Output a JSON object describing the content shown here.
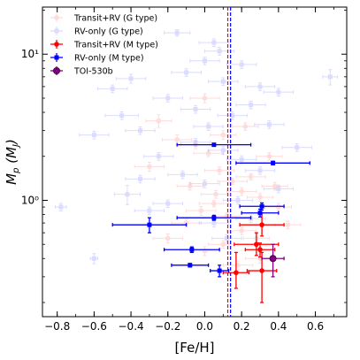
{
  "chart_data": {
    "type": "scatter",
    "xlabel": "[Fe/H]",
    "ylabel": "M_p (M_J)",
    "xlim": [
      -0.88,
      0.77
    ],
    "ylim": [
      0.16,
      21
    ],
    "yscale": "log",
    "grid": false,
    "legend_position": "top-left",
    "x_ticks": [
      -0.8,
      -0.6,
      -0.4,
      -0.2,
      0.0,
      0.2,
      0.4,
      0.6
    ],
    "x_tick_labels": [
      "−0.8",
      "−0.6",
      "−0.4",
      "−0.2",
      "0.0",
      "0.2",
      "0.4",
      "0.6"
    ],
    "y_major_ticks": [
      1,
      10
    ],
    "y_tick_labels": [
      "10⁰",
      "10¹"
    ],
    "reference_lines": [
      {
        "x": 0.125,
        "color": "#ff0000",
        "style": "dashed"
      },
      {
        "x": 0.14,
        "color": "#0000ff",
        "style": "dashed"
      }
    ],
    "series": [
      {
        "name": "Transit+RV (G type)",
        "color": "#ff9999",
        "marker": "circle",
        "faded": true,
        "points": [
          {
            "x": -0.25,
            "y": 3.5,
            "xerr": 0.07,
            "yerr_rel": 0.1
          },
          {
            "x": -0.15,
            "y": 2.6,
            "xerr": 0.08,
            "yerr_rel": 0.08
          },
          {
            "x": -0.05,
            "y": 2.4,
            "xerr": 0.08,
            "yerr_rel": 0.06
          },
          {
            "x": 0.02,
            "y": 2.1,
            "xerr": 0.08,
            "yerr_rel": 0.05
          },
          {
            "x": 0.08,
            "y": 1.6,
            "xerr": 0.08,
            "yerr_rel": 0.06
          },
          {
            "x": 0.1,
            "y": 2.8,
            "xerr": 0.07,
            "yerr_rel": 0.07
          },
          {
            "x": 0.15,
            "y": 1.35,
            "xerr": 0.08,
            "yerr_rel": 0.05
          },
          {
            "x": 0.2,
            "y": 1.15,
            "xerr": 0.08,
            "yerr_rel": 0.06
          },
          {
            "x": 0.25,
            "y": 1.45,
            "xerr": 0.08,
            "yerr_rel": 0.05
          },
          {
            "x": 0.3,
            "y": 1.05,
            "xerr": 0.07,
            "yerr_rel": 0.06
          },
          {
            "x": 0.05,
            "y": 0.95,
            "xerr": 0.08,
            "yerr_rel": 0.05
          },
          {
            "x": -0.02,
            "y": 0.85,
            "xerr": 0.08,
            "yerr_rel": 0.07
          },
          {
            "x": 0.12,
            "y": 0.78,
            "xerr": 0.07,
            "yerr_rel": 0.05
          },
          {
            "x": 0.2,
            "y": 0.62,
            "xerr": 0.08,
            "yerr_rel": 0.06
          },
          {
            "x": -0.1,
            "y": 0.7,
            "xerr": 0.08,
            "yerr_rel": 0.06
          },
          {
            "x": 0.28,
            "y": 0.55,
            "xerr": 0.07,
            "yerr_rel": 0.07
          },
          {
            "x": 0.1,
            "y": 0.5,
            "xerr": 0.08,
            "yerr_rel": 0.06
          },
          {
            "x": 0.0,
            "y": 0.45,
            "xerr": 0.08,
            "yerr_rel": 0.07
          },
          {
            "x": 0.3,
            "y": 0.4,
            "xerr": 0.08,
            "yerr_rel": 0.07
          },
          {
            "x": -0.2,
            "y": 0.55,
            "xerr": 0.08,
            "yerr_rel": 0.07
          },
          {
            "x": 0.4,
            "y": 0.9,
            "xerr": 0.07,
            "yerr_rel": 0.06
          },
          {
            "x": 0.35,
            "y": 2.0,
            "xerr": 0.07,
            "yerr_rel": 0.06
          },
          {
            "x": -0.08,
            "y": 1.25,
            "xerr": 0.07,
            "yerr_rel": 0.06
          },
          {
            "x": 0.45,
            "y": 0.68,
            "xerr": 0.07,
            "yerr_rel": 0.06
          },
          {
            "x": 0.18,
            "y": 0.36,
            "xerr": 0.08,
            "yerr_rel": 0.07
          },
          {
            "x": 0.0,
            "y": 5.0,
            "xerr": 0.08,
            "yerr_rel": 0.07
          },
          {
            "x": 0.22,
            "y": 3.2,
            "xerr": 0.07,
            "yerr_rel": 0.06
          },
          {
            "x": -0.3,
            "y": 1.7,
            "xerr": 0.08,
            "yerr_rel": 0.07
          },
          {
            "x": 0.38,
            "y": 1.25,
            "xerr": 0.07,
            "yerr_rel": 0.06
          },
          {
            "x": 0.06,
            "y": 1.1,
            "xerr": 0.08,
            "yerr_rel": 0.06
          }
        ]
      },
      {
        "name": "RV-only (G type)",
        "color": "#9999ff",
        "marker": "square",
        "faded": true,
        "points": [
          {
            "x": -0.4,
            "y": 6.8,
            "xerr": 0.08,
            "yerr_rel": 0.07
          },
          {
            "x": -0.5,
            "y": 5.8,
            "xerr": 0.08,
            "yerr_rel": 0.06
          },
          {
            "x": -0.45,
            "y": 3.8,
            "xerr": 0.09,
            "yerr_rel": 0.06
          },
          {
            "x": -0.35,
            "y": 3.0,
            "xerr": 0.08,
            "yerr_rel": 0.06
          },
          {
            "x": -0.6,
            "y": 2.8,
            "xerr": 0.08,
            "yerr_rel": 0.06
          },
          {
            "x": -0.2,
            "y": 5.0,
            "xerr": 0.08,
            "yerr_rel": 0.06
          },
          {
            "x": -0.1,
            "y": 7.5,
            "xerr": 0.08,
            "yerr_rel": 0.06
          },
          {
            "x": 0.0,
            "y": 9.0,
            "xerr": 0.08,
            "yerr_rel": 0.06
          },
          {
            "x": 0.05,
            "y": 12.0,
            "xerr": 0.08,
            "yerr_rel": 0.06
          },
          {
            "x": -0.15,
            "y": 14.0,
            "xerr": 0.07,
            "yerr_rel": 0.05
          },
          {
            "x": 0.1,
            "y": 6.5,
            "xerr": 0.08,
            "yerr_rel": 0.06
          },
          {
            "x": 0.2,
            "y": 8.5,
            "xerr": 0.08,
            "yerr_rel": 0.06
          },
          {
            "x": 0.3,
            "y": 6.0,
            "xerr": 0.08,
            "yerr_rel": 0.06
          },
          {
            "x": 0.25,
            "y": 4.5,
            "xerr": 0.08,
            "yerr_rel": 0.06
          },
          {
            "x": 0.4,
            "y": 5.5,
            "xerr": 0.08,
            "yerr_rel": 0.06
          },
          {
            "x": 0.35,
            "y": 3.3,
            "xerr": 0.08,
            "yerr_rel": 0.06
          },
          {
            "x": 0.15,
            "y": 3.8,
            "xerr": 0.08,
            "yerr_rel": 0.06
          },
          {
            "x": 0.02,
            "y": 3.2,
            "xerr": 0.08,
            "yerr_rel": 0.06
          },
          {
            "x": -0.05,
            "y": 2.5,
            "xerr": 0.08,
            "yerr_rel": 0.06
          },
          {
            "x": 0.1,
            "y": 2.2,
            "xerr": 0.08,
            "yerr_rel": 0.06
          },
          {
            "x": -0.25,
            "y": 2.0,
            "xerr": 0.08,
            "yerr_rel": 0.06
          },
          {
            "x": 0.3,
            "y": 1.6,
            "xerr": 0.08,
            "yerr_rel": 0.06
          },
          {
            "x": 0.2,
            "y": 1.9,
            "xerr": 0.08,
            "yerr_rel": 0.06
          },
          {
            "x": -0.12,
            "y": 1.5,
            "xerr": 0.08,
            "yerr_rel": 0.06
          },
          {
            "x": 0.5,
            "y": 2.3,
            "xerr": 0.08,
            "yerr_rel": 0.06
          },
          {
            "x": 0.68,
            "y": 7.0,
            "xerr": 0.04,
            "yerr_rel": 0.12
          },
          {
            "x": -0.78,
            "y": 0.9,
            "xerr": 0.03,
            "yerr_rel": 0.06
          },
          {
            "x": -0.6,
            "y": 0.4,
            "xerr": 0.02,
            "yerr_rel": 0.08
          },
          {
            "x": -0.42,
            "y": 1.1,
            "xerr": 0.07,
            "yerr_rel": 0.15
          },
          {
            "x": -0.3,
            "y": 0.85,
            "xerr": 0.08,
            "yerr_rel": 0.06
          },
          {
            "x": 0.05,
            "y": 0.7,
            "xerr": 0.08,
            "yerr_rel": 0.06
          },
          {
            "x": 0.18,
            "y": 1.0,
            "xerr": 0.08,
            "yerr_rel": 0.06
          },
          {
            "x": 0.4,
            "y": 1.2,
            "xerr": 0.08,
            "yerr_rel": 0.06
          },
          {
            "x": -0.35,
            "y": 1.4,
            "xerr": 0.08,
            "yerr_rel": 0.06
          },
          {
            "x": 0.0,
            "y": 1.3,
            "xerr": 0.08,
            "yerr_rel": 0.06
          },
          {
            "x": -0.2,
            "y": 0.95,
            "xerr": 0.08,
            "yerr_rel": 0.06
          },
          {
            "x": 0.12,
            "y": 0.55,
            "xerr": 0.08,
            "yerr_rel": 0.06
          },
          {
            "x": 0.25,
            "y": 0.75,
            "xerr": 0.08,
            "yerr_rel": 0.06
          },
          {
            "x": -0.05,
            "y": 4.2,
            "xerr": 0.08,
            "yerr_rel": 0.06
          },
          {
            "x": 0.08,
            "y": 10.5,
            "xerr": 0.08,
            "yerr_rel": 0.06
          }
        ]
      },
      {
        "name": "Transit+RV (M type)",
        "color": "#ff0000",
        "marker": "circle",
        "faded": false,
        "points": [
          {
            "x": 0.17,
            "y": 0.32,
            "xerr": 0.07,
            "yerr_lo": 0.07,
            "yerr_hi": 0.12
          },
          {
            "x": 0.28,
            "y": 0.5,
            "xerr": 0.12,
            "yerr_lo": 0.08,
            "yerr_hi": 0.1
          },
          {
            "x": 0.31,
            "y": 0.68,
            "xerr": 0.12,
            "yerr_lo": 0.11,
            "yerr_hi": 0.14
          },
          {
            "x": 0.3,
            "y": 0.46,
            "xerr": 0.08,
            "yerr_lo": 0.05,
            "yerr_hi": 0.05
          },
          {
            "x": 0.31,
            "y": 0.33,
            "xerr": 0.08,
            "yerr_lo": 0.13,
            "yerr_hi": 0.11
          }
        ]
      },
      {
        "name": "RV-only (M type)",
        "color": "#0000ff",
        "marker": "square",
        "faded": false,
        "points": [
          {
            "x": 0.05,
            "y": 2.4,
            "xerr": 0.2,
            "yerr_lo": 0.05,
            "yerr_hi": 0.05
          },
          {
            "x": 0.37,
            "y": 1.8,
            "xerr": 0.2,
            "yerr_lo": 0.05,
            "yerr_hi": 0.05
          },
          {
            "x": 0.31,
            "y": 0.91,
            "xerr": 0.12,
            "yerr_lo": 0.05,
            "yerr_hi": 0.05
          },
          {
            "x": 0.3,
            "y": 0.82,
            "xerr": 0.1,
            "yerr_lo": 0.05,
            "yerr_hi": 0.05
          },
          {
            "x": 0.05,
            "y": 0.76,
            "xerr": 0.2,
            "yerr_lo": 0.03,
            "yerr_hi": 0.03
          },
          {
            "x": -0.3,
            "y": 0.68,
            "xerr": 0.2,
            "yerr_lo": 0.08,
            "yerr_hi": 0.08
          },
          {
            "x": -0.07,
            "y": 0.46,
            "xerr": 0.15,
            "yerr_lo": 0.02,
            "yerr_hi": 0.02
          },
          {
            "x": -0.08,
            "y": 0.36,
            "xerr": 0.1,
            "yerr_lo": 0.01,
            "yerr_hi": 0.01
          },
          {
            "x": 0.08,
            "y": 0.33,
            "xerr": 0.05,
            "yerr_lo": 0.03,
            "yerr_hi": 0.03
          }
        ]
      },
      {
        "name": "TOI-530b",
        "color": "#800080",
        "marker": "circle-hollow",
        "faded": false,
        "points": [
          {
            "x": 0.37,
            "y": 0.4,
            "xerr": 0.06,
            "yerr_lo": 0.1,
            "yerr_hi": 0.1
          }
        ]
      }
    ]
  }
}
